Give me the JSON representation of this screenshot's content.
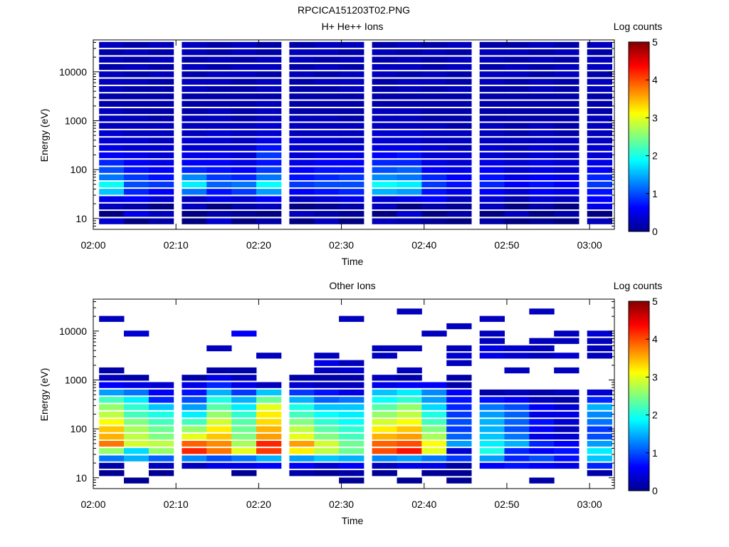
{
  "figure": {
    "title": "RPCICA151203T02.PNG"
  },
  "colorbar": {
    "label": "Log counts",
    "ticks": [
      "0",
      "1",
      "2",
      "3",
      "4",
      "5"
    ],
    "range": [
      0,
      5
    ],
    "colormap": "jet"
  },
  "chart_data": [
    {
      "type": "heatmap",
      "title": "H+ He++ Ions",
      "xlabel": "Time",
      "ylabel": "Energy (eV)",
      "x_ticks": [
        "02:00",
        "02:10",
        "02:20",
        "02:30",
        "02:40",
        "02:50",
        "03:00"
      ],
      "y_ticks": [
        "10",
        "100",
        "1000",
        "10000"
      ],
      "y_scale": "log",
      "ylim": [
        6,
        45000
      ],
      "xlim": [
        "02:00",
        "03:03"
      ],
      "time_bins": [
        "02:01",
        "02:04",
        "02:07",
        "02:11",
        "02:14",
        "02:17",
        "02:20",
        "02:24",
        "02:27",
        "02:30",
        "02:34",
        "02:37",
        "02:40",
        "02:43",
        "02:47",
        "02:50",
        "02:53",
        "02:56",
        "03:00"
      ],
      "energy_bins_eV": [
        8.5,
        12,
        17,
        24,
        34,
        48,
        67,
        95,
        134,
        190,
        268,
        380,
        536,
        760,
        1073,
        1518,
        2146,
        3035,
        4292,
        6070,
        8584,
        12140,
        17167,
        24279,
        34335
      ],
      "z_log_counts": [
        [
          0.4,
          0.0,
          0.2,
          0.0,
          0.4,
          0.0,
          0.2,
          0.0,
          0.3,
          0.0,
          0.3,
          0.2,
          0.1,
          0.0,
          0.2,
          0.0,
          0.1,
          0.0,
          0.3
        ],
        [
          0.0,
          0.5,
          0.3,
          0.0,
          0.2,
          0.1,
          0.0,
          0.3,
          0.2,
          0.1,
          0.0,
          0.4,
          0.0,
          0.2,
          0.0,
          0.3,
          0.0,
          0.2,
          0.0
        ],
        [
          0.3,
          0.2,
          0.0,
          0.3,
          0.0,
          0.2,
          0.3,
          0.0,
          0.1,
          0.2,
          0.3,
          0.0,
          0.2,
          0.1,
          0.3,
          0.0,
          0.2,
          0.0,
          0.5
        ],
        [
          0.5,
          0.6,
          0.4,
          0.3,
          0.5,
          0.4,
          0.6,
          0.3,
          0.4,
          0.5,
          0.4,
          0.5,
          0.6,
          0.3,
          0.4,
          0.2,
          0.4,
          0.3,
          0.6
        ],
        [
          1.6,
          0.8,
          0.6,
          1.2,
          0.7,
          0.9,
          1.4,
          0.6,
          0.7,
          0.8,
          1.5,
          1.4,
          0.7,
          0.5,
          0.6,
          0.4,
          0.6,
          0.5,
          0.7
        ],
        [
          1.9,
          1.0,
          0.9,
          1.8,
          1.1,
          1.2,
          1.9,
          0.9,
          1.0,
          1.0,
          1.9,
          1.8,
          0.9,
          0.7,
          0.8,
          0.6,
          0.7,
          0.6,
          0.9
        ],
        [
          1.2,
          0.9,
          0.7,
          1.3,
          0.9,
          0.8,
          1.2,
          0.7,
          0.8,
          0.9,
          1.3,
          1.2,
          0.8,
          0.6,
          0.7,
          0.5,
          0.6,
          0.5,
          0.8
        ],
        [
          1.0,
          0.7,
          0.6,
          0.8,
          0.7,
          0.6,
          0.9,
          0.6,
          0.7,
          0.7,
          1.0,
          1.1,
          0.6,
          0.5,
          0.6,
          0.4,
          0.5,
          0.4,
          0.6
        ],
        [
          0.8,
          0.6,
          0.5,
          0.6,
          0.6,
          0.5,
          0.7,
          0.5,
          0.6,
          0.6,
          0.8,
          0.8,
          0.5,
          0.4,
          0.5,
          0.4,
          0.5,
          0.4,
          0.5
        ],
        [
          0.6,
          0.5,
          0.4,
          0.5,
          0.5,
          0.4,
          0.9,
          0.4,
          0.5,
          0.5,
          0.6,
          0.7,
          0.4,
          0.4,
          0.4,
          0.3,
          0.4,
          0.3,
          0.4
        ],
        [
          0.5,
          0.4,
          0.4,
          0.4,
          0.4,
          0.4,
          0.7,
          0.4,
          0.4,
          0.4,
          0.5,
          0.5,
          0.4,
          0.3,
          0.4,
          0.3,
          0.4,
          0.3,
          0.4
        ],
        [
          0.4,
          0.4,
          0.3,
          0.4,
          0.4,
          0.3,
          0.5,
          0.4,
          0.4,
          0.3,
          0.4,
          0.4,
          0.3,
          0.3,
          0.3,
          0.3,
          0.3,
          0.3,
          0.3
        ],
        [
          0.4,
          0.3,
          0.3,
          0.3,
          0.4,
          0.3,
          0.4,
          0.3,
          0.3,
          0.3,
          0.4,
          0.4,
          0.3,
          0.3,
          0.3,
          0.2,
          0.3,
          0.2,
          0.3
        ],
        [
          0.3,
          0.3,
          0.3,
          0.3,
          0.3,
          0.3,
          0.4,
          0.3,
          0.3,
          0.3,
          0.3,
          0.3,
          0.3,
          0.2,
          0.3,
          0.2,
          0.3,
          0.2,
          0.3
        ],
        [
          0.3,
          0.3,
          0.2,
          0.3,
          0.3,
          0.2,
          0.3,
          0.3,
          0.3,
          0.2,
          0.3,
          0.3,
          0.2,
          0.2,
          0.2,
          0.2,
          0.2,
          0.2,
          0.3
        ],
        [
          0.3,
          0.2,
          0.2,
          0.2,
          0.3,
          0.2,
          0.3,
          0.2,
          0.2,
          0.2,
          0.3,
          0.3,
          0.2,
          0.2,
          0.2,
          0.2,
          0.2,
          0.2,
          0.2
        ],
        [
          0.2,
          0.2,
          0.2,
          0.2,
          0.2,
          0.2,
          0.3,
          0.2,
          0.2,
          0.2,
          0.2,
          0.2,
          0.2,
          0.2,
          0.2,
          0.2,
          0.2,
          0.2,
          0.2
        ],
        [
          0.2,
          0.2,
          0.2,
          0.2,
          0.2,
          0.2,
          0.2,
          0.2,
          0.2,
          0.2,
          0.2,
          0.2,
          0.2,
          0.2,
          0.2,
          0.2,
          0.2,
          0.2,
          0.2
        ],
        [
          0.3,
          0.2,
          0.2,
          0.3,
          0.2,
          0.2,
          0.3,
          0.2,
          0.2,
          0.3,
          0.2,
          0.3,
          0.2,
          0.3,
          0.2,
          0.2,
          0.3,
          0.2,
          0.3
        ],
        [
          0.3,
          0.3,
          0.2,
          0.3,
          0.3,
          0.2,
          0.3,
          0.2,
          0.3,
          0.3,
          0.2,
          0.3,
          0.3,
          0.2,
          0.3,
          0.2,
          0.3,
          0.2,
          0.3
        ],
        [
          0.3,
          0.2,
          0.3,
          0.2,
          0.3,
          0.3,
          0.2,
          0.3,
          0.2,
          0.3,
          0.3,
          0.2,
          0.3,
          0.2,
          0.3,
          0.3,
          0.2,
          0.3,
          0.2
        ],
        [
          0.2,
          0.3,
          0.2,
          0.3,
          0.2,
          0.3,
          0.3,
          0.2,
          0.3,
          0.2,
          0.3,
          0.3,
          0.2,
          0.3,
          0.2,
          0.3,
          0.2,
          0.3,
          0.3
        ],
        [
          0.3,
          0.2,
          0.3,
          0.2,
          0.3,
          0.2,
          0.3,
          0.3,
          0.2,
          0.3,
          0.2,
          0.3,
          0.2,
          0.3,
          0.3,
          0.2,
          0.3,
          0.2,
          0.3
        ],
        [
          0.2,
          0.3,
          0.2,
          0.3,
          0.2,
          0.3,
          0.2,
          0.3,
          0.3,
          0.2,
          0.3,
          0.2,
          0.3,
          0.2,
          0.3,
          0.3,
          0.2,
          0.3,
          0.2
        ],
        [
          0.3,
          0.2,
          0.3,
          0.3,
          0.2,
          0.3,
          0.2,
          0.2,
          0.3,
          0.3,
          0.2,
          0.3,
          0.2,
          0.3,
          0.2,
          0.2,
          0.3,
          0.2,
          0.3
        ]
      ]
    },
    {
      "type": "heatmap",
      "title": "Other Ions",
      "xlabel": "Time",
      "ylabel": "Energy (eV)",
      "x_ticks": [
        "02:00",
        "02:10",
        "02:20",
        "02:30",
        "02:40",
        "02:50",
        "03:00"
      ],
      "y_ticks": [
        "10",
        "100",
        "1000",
        "10000"
      ],
      "y_scale": "log",
      "ylim": [
        6,
        45000
      ],
      "xlim": [
        "02:00",
        "03:03"
      ],
      "time_bins": [
        "02:01",
        "02:04",
        "02:07",
        "02:11",
        "02:14",
        "02:17",
        "02:20",
        "02:24",
        "02:27",
        "02:30",
        "02:34",
        "02:37",
        "02:40",
        "02:43",
        "02:47",
        "02:50",
        "02:53",
        "02:56",
        "03:00"
      ],
      "energy_bins_eV": [
        8.5,
        12,
        17,
        24,
        34,
        48,
        67,
        95,
        134,
        190,
        268,
        380,
        536,
        760,
        1073,
        1518,
        2146,
        3035,
        4292,
        6070,
        8584,
        12140,
        17167,
        24279,
        34335
      ],
      "z_log_counts": [
        [
          null,
          0.1,
          null,
          null,
          null,
          null,
          null,
          null,
          null,
          0.1,
          null,
          0.1,
          null,
          0.1,
          null,
          null,
          0.2,
          null,
          null
        ],
        [
          0.1,
          null,
          0.1,
          null,
          null,
          0.1,
          null,
          0.2,
          0.1,
          0.2,
          0.1,
          null,
          0.1,
          0.1,
          null,
          null,
          null,
          null,
          0.2
        ],
        [
          0.2,
          null,
          0.3,
          0.3,
          0.5,
          0.5,
          0.6,
          0.6,
          0.4,
          0.6,
          0.3,
          0.5,
          0.5,
          0.2,
          0.6,
          0.7,
          0.6,
          0.5,
          0.8
        ],
        [
          1.2,
          1.5,
          1.1,
          1.3,
          1.0,
          1.2,
          1.5,
          1.4,
          1.6,
          1.5,
          1.3,
          1.4,
          1.2,
          0.9,
          1.4,
          0.8,
          1.0,
          0.7,
          1.6
        ],
        [
          2.6,
          1.7,
          2.6,
          4.2,
          3.8,
          3.0,
          4.1,
          3.2,
          2.8,
          2.4,
          4.0,
          4.3,
          3.0,
          0.4,
          2.0,
          0.8,
          0.6,
          0.7,
          1.8
        ],
        [
          3.8,
          2.9,
          2.8,
          3.9,
          3.7,
          2.7,
          4.2,
          3.6,
          2.9,
          2.4,
          3.9,
          4.0,
          3.1,
          1.4,
          1.8,
          1.5,
          0.8,
          0.6,
          1.4
        ],
        [
          3.5,
          2.8,
          2.5,
          3.0,
          3.4,
          2.5,
          3.6,
          3.0,
          2.5,
          2.2,
          3.5,
          3.6,
          2.7,
          1.1,
          1.6,
          1.2,
          0.5,
          0.4,
          1.0
        ],
        [
          3.4,
          2.7,
          2.4,
          2.6,
          3.2,
          2.4,
          3.5,
          2.8,
          2.3,
          2.1,
          3.2,
          3.4,
          2.5,
          0.9,
          1.5,
          1.0,
          0.6,
          0.3,
          0.9
        ],
        [
          3.1,
          2.5,
          2.2,
          2.2,
          2.9,
          2.3,
          3.3,
          2.5,
          2.1,
          1.9,
          2.9,
          3.1,
          2.2,
          1.0,
          1.5,
          1.1,
          0.7,
          0.4,
          1.2
        ],
        [
          2.8,
          2.2,
          2.0,
          1.8,
          2.6,
          2.1,
          3.2,
          2.2,
          1.9,
          1.8,
          2.6,
          2.8,
          2.0,
          0.9,
          1.4,
          1.1,
          0.5,
          0.5,
          1.3
        ],
        [
          2.6,
          2.1,
          1.6,
          1.4,
          2.3,
          1.8,
          3.0,
          2.0,
          1.6,
          1.6,
          2.3,
          2.6,
          1.7,
          0.8,
          1.2,
          1.0,
          0.6,
          0.4,
          1.5
        ],
        [
          2.2,
          1.8,
          0.8,
          1.0,
          2.0,
          1.5,
          2.4,
          1.5,
          1.1,
          1.2,
          1.9,
          2.1,
          1.4,
          0.7,
          0.7,
          0.6,
          0.3,
          0.2,
          0.8
        ],
        [
          1.4,
          1.2,
          0.6,
          0.7,
          1.5,
          0.9,
          1.6,
          0.9,
          0.7,
          0.5,
          1.6,
          1.8,
          1.3,
          0.6,
          0.2,
          0.3,
          0.2,
          0.3,
          0.4
        ],
        [
          0.6,
          0.5,
          0.4,
          0.5,
          0.8,
          0.5,
          0.3,
          0.4,
          0.3,
          0.3,
          0.5,
          0.6,
          0.6,
          0.2,
          null,
          null,
          null,
          null,
          null
        ],
        [
          0.3,
          0.2,
          null,
          0.2,
          0.5,
          0.3,
          null,
          0.2,
          0.2,
          0.2,
          0.3,
          0.2,
          null,
          0.2,
          null,
          null,
          null,
          null,
          null
        ],
        [
          0.2,
          null,
          null,
          null,
          0.2,
          0.2,
          null,
          null,
          0.3,
          0.4,
          null,
          0.3,
          null,
          null,
          null,
          0.3,
          null,
          0.3,
          null
        ],
        [
          null,
          null,
          null,
          null,
          null,
          null,
          null,
          null,
          0.5,
          0.3,
          null,
          null,
          null,
          0.3,
          null,
          null,
          null,
          null,
          null
        ],
        [
          null,
          null,
          null,
          null,
          null,
          null,
          0.3,
          null,
          0.3,
          null,
          0.3,
          null,
          null,
          0.4,
          0.5,
          0.4,
          0.3,
          0.4,
          0.3
        ],
        [
          null,
          null,
          null,
          null,
          0.3,
          null,
          null,
          null,
          null,
          null,
          0.3,
          0.3,
          null,
          0.3,
          0.5,
          0.4,
          0.3,
          null,
          0.3
        ],
        [
          null,
          null,
          null,
          null,
          null,
          null,
          null,
          null,
          null,
          null,
          null,
          null,
          null,
          null,
          0.3,
          null,
          0.3,
          0.3,
          0.3
        ],
        [
          null,
          0.4,
          null,
          null,
          null,
          0.6,
          null,
          null,
          null,
          null,
          null,
          null,
          0.3,
          null,
          0.3,
          null,
          null,
          0.3,
          0.4
        ],
        [
          null,
          null,
          null,
          null,
          null,
          null,
          null,
          null,
          null,
          null,
          null,
          null,
          null,
          0.3,
          null,
          null,
          null,
          null,
          null
        ],
        [
          0.3,
          null,
          null,
          null,
          null,
          null,
          null,
          null,
          null,
          0.3,
          null,
          null,
          null,
          null,
          0.3,
          null,
          null,
          null,
          null
        ],
        [
          null,
          null,
          null,
          null,
          null,
          null,
          null,
          null,
          null,
          null,
          null,
          0.3,
          null,
          null,
          null,
          null,
          0.3,
          null,
          null
        ],
        [
          null,
          null,
          null,
          null,
          null,
          null,
          null,
          null,
          null,
          null,
          null,
          null,
          null,
          null,
          null,
          null,
          null,
          null,
          null
        ]
      ]
    }
  ]
}
